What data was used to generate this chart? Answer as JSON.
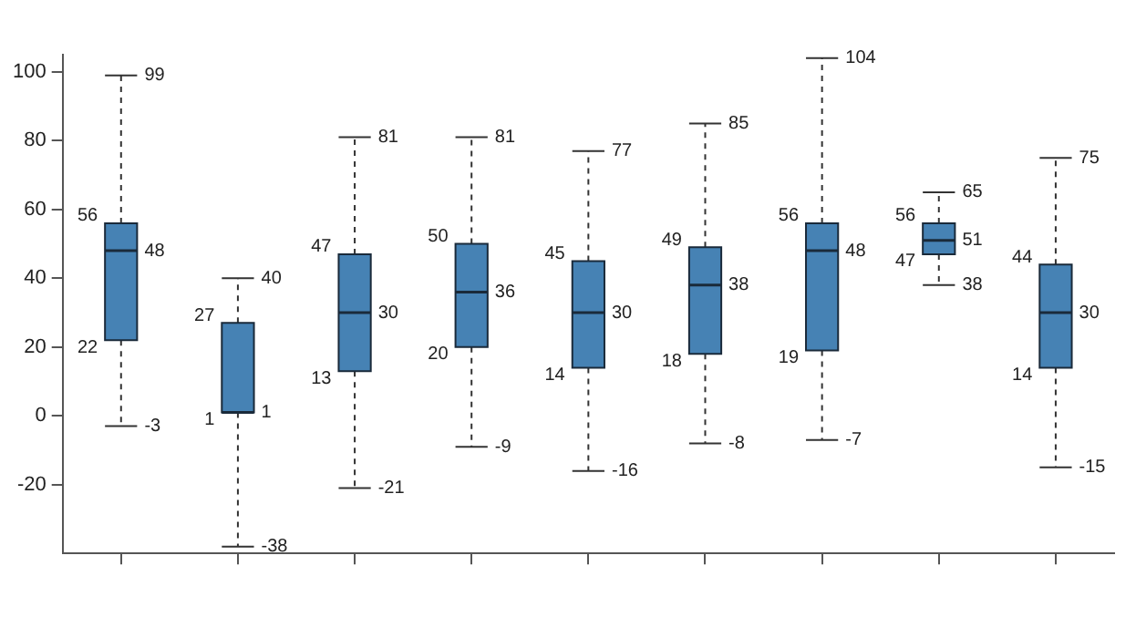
{
  "chart_data": {
    "type": "box",
    "categories": [
      null,
      null,
      null,
      null,
      null,
      null,
      null,
      null,
      null
    ],
    "color": "#4682b4",
    "boxes": [
      {
        "low": -3,
        "q1": 22,
        "median": 48,
        "q3": 56,
        "high": 99
      },
      {
        "low": -38,
        "q1": 1,
        "median": 1,
        "q3": 27,
        "high": 40
      },
      {
        "low": -21,
        "q1": 13,
        "median": 30,
        "q3": 47,
        "high": 81
      },
      {
        "low": -9,
        "q1": 20,
        "median": 36,
        "q3": 50,
        "high": 81
      },
      {
        "low": -16,
        "q1": 14,
        "median": 30,
        "q3": 45,
        "high": 77
      },
      {
        "low": -8,
        "q1": 18,
        "median": 38,
        "q3": 49,
        "high": 85
      },
      {
        "low": -7,
        "q1": 19,
        "median": 48,
        "q3": 56,
        "high": 104
      },
      {
        "low": 38,
        "q1": 47,
        "median": 51,
        "q3": 56,
        "high": 65
      },
      {
        "low": -15,
        "q1": 14,
        "median": 30,
        "q3": 44,
        "high": 75
      }
    ],
    "value_labels": [
      [
        "-3",
        "22",
        "48",
        "56",
        "99"
      ],
      [
        "-38",
        "1",
        "1",
        "27",
        "40"
      ],
      [
        "-21",
        "13",
        "30",
        "47",
        "81"
      ],
      [
        "-9",
        "20",
        "36",
        "50",
        "81"
      ],
      [
        "-16",
        "14",
        "30",
        "45",
        "77"
      ],
      [
        "-8",
        "18",
        "38",
        "49",
        "85"
      ],
      [
        "-7",
        "19",
        "48",
        "56",
        "104"
      ],
      [
        "38",
        "47",
        "51",
        "56",
        "65"
      ],
      [
        "-15",
        "14",
        "30",
        "44",
        "75"
      ]
    ],
    "ylim": [
      -40,
      105
    ],
    "yticks": [
      -20,
      0,
      20,
      40,
      60,
      80,
      100
    ],
    "grid": false,
    "legend": false,
    "line_style": "dashed"
  }
}
